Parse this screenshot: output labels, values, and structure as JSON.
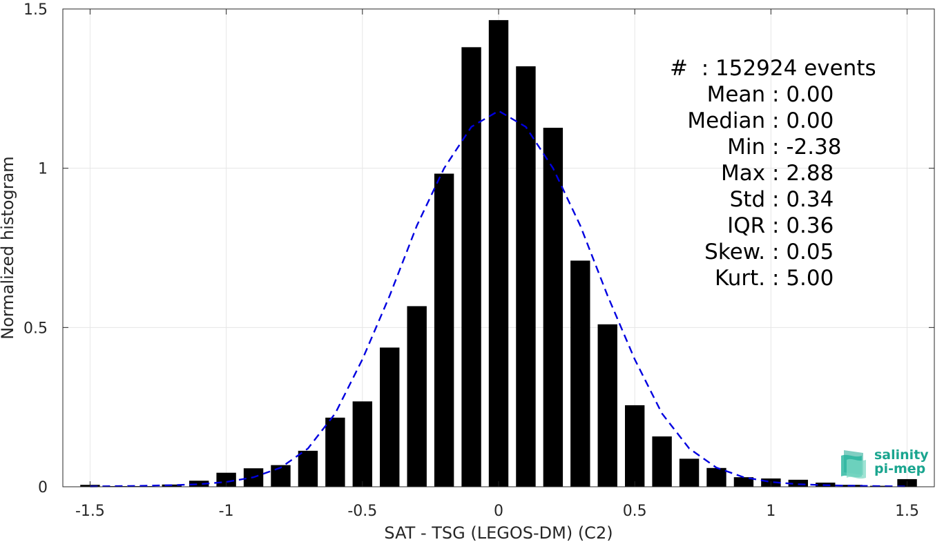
{
  "chart_data": {
    "type": "bar",
    "xlabel": "SAT - TSG (LEGOS-DM) (C2)",
    "ylabel": "Normalized histogram",
    "xlim": [
      -1.6,
      1.6
    ],
    "ylim": [
      0,
      1.5
    ],
    "xticks": [
      -1.5,
      -1,
      -0.5,
      0,
      0.5,
      1,
      1.5
    ],
    "xtick_labels": [
      "-1.5",
      "-1",
      "-0.5",
      "0",
      "0.5",
      "1",
      "1.5"
    ],
    "yticks": [
      0,
      0.5,
      1,
      1.5
    ],
    "ytick_labels": [
      "0",
      "0.5",
      "1",
      "1.5"
    ],
    "grid": true,
    "bar_color": "#000000",
    "fit_color": "#0000e0",
    "bin_width": 0.1,
    "bins": [
      -1.5,
      -1.4,
      -1.3,
      -1.2,
      -1.1,
      -1.0,
      -0.9,
      -0.8,
      -0.7,
      -0.6,
      -0.5,
      -0.4,
      -0.3,
      -0.2,
      -0.1,
      0.0,
      0.1,
      0.2,
      0.3,
      0.4,
      0.5,
      0.6,
      0.7,
      0.8,
      0.9,
      1.0,
      1.1,
      1.2,
      1.3,
      1.4,
      1.5
    ],
    "values": [
      0.006,
      0.002,
      0.002,
      0.007,
      0.019,
      0.044,
      0.058,
      0.068,
      0.113,
      0.217,
      0.268,
      0.437,
      0.567,
      0.983,
      1.38,
      1.465,
      1.32,
      1.127,
      0.71,
      0.51,
      0.256,
      0.158,
      0.088,
      0.059,
      0.03,
      0.026,
      0.022,
      0.013,
      0.006,
      0.003,
      0.024
    ],
    "fit": {
      "type": "gaussian-dashed",
      "x": [
        -1.5,
        -1.4,
        -1.3,
        -1.2,
        -1.1,
        -1.0,
        -0.9,
        -0.8,
        -0.7,
        -0.6,
        -0.5,
        -0.4,
        -0.3,
        -0.2,
        -0.1,
        0.0,
        0.1,
        0.2,
        0.3,
        0.4,
        0.5,
        0.6,
        0.7,
        0.8,
        0.9,
        1.0,
        1.1,
        1.2,
        1.3,
        1.4,
        1.5
      ],
      "y": [
        0.001,
        0.002,
        0.003,
        0.005,
        0.008,
        0.015,
        0.03,
        0.06,
        0.12,
        0.23,
        0.4,
        0.6,
        0.82,
        1.0,
        1.13,
        1.18,
        1.13,
        1.0,
        0.82,
        0.6,
        0.4,
        0.23,
        0.12,
        0.06,
        0.03,
        0.015,
        0.008,
        0.005,
        0.003,
        0.002,
        0.001
      ]
    }
  },
  "stats": [
    {
      "name": "#  ",
      "value": "152924 events"
    },
    {
      "name": "Mean ",
      "value": "0.00"
    },
    {
      "name": "Median ",
      "value": "0.00"
    },
    {
      "name": "Min ",
      "value": "-2.38"
    },
    {
      "name": "Max ",
      "value": "2.88"
    },
    {
      "name": "Std ",
      "value": "0.34"
    },
    {
      "name": "IQR ",
      "value": "0.36"
    },
    {
      "name": "Skew. ",
      "value": "0.05"
    },
    {
      "name": "Kurt. ",
      "value": "5.00"
    }
  ],
  "logo": {
    "line1": "salinity",
    "line2": "pi-mep",
    "icon": "salinity-wave-icon",
    "color": "#1aa58f"
  }
}
